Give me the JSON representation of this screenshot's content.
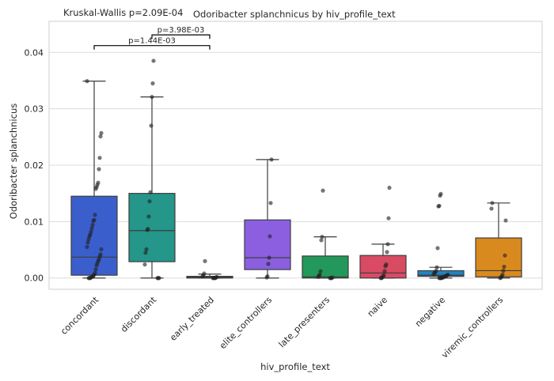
{
  "chart_data": {
    "type": "box",
    "title": "Odoribacter splanchnicus by hiv_profile_text",
    "subtitle": "Kruskal-Wallis p=2.09E-04",
    "xlabel": "hiv_profile_text",
    "ylabel": "Odoribacter splanchnicus",
    "ylim": [
      -0.002,
      0.0455
    ],
    "yticks": [
      0.0,
      0.01,
      0.02,
      0.03,
      0.04
    ],
    "ytick_labels": [
      "0.00",
      "0.01",
      "0.02",
      "0.03",
      "0.04"
    ],
    "grid": "horizontal",
    "categories": [
      "concordant",
      "discordant",
      "early_treated",
      "elite_controllers",
      "late_presenters",
      "naive",
      "negative",
      "viremic_controllers"
    ],
    "colors": [
      "#3a5fcd",
      "#24968a",
      "#8b4a2b",
      "#8b5fe0",
      "#22995a",
      "#d94a63",
      "#1f84c4",
      "#d98a1f"
    ],
    "boxes": [
      {
        "q1": 0.0005,
        "median": 0.0037,
        "q3": 0.0145,
        "whisker_low": 0.0,
        "whisker_high": 0.0349
      },
      {
        "q1": 0.0029,
        "median": 0.0084,
        "q3": 0.015,
        "whisker_low": 0.0,
        "whisker_high": 0.0321
      },
      {
        "q1": 0.0,
        "median": 0.0001,
        "q3": 0.0003,
        "whisker_low": 0.0,
        "whisker_high": 0.0007
      },
      {
        "q1": 0.0015,
        "median": 0.0036,
        "q3": 0.0103,
        "whisker_low": 0.0,
        "whisker_high": 0.021
      },
      {
        "q1": 0.0,
        "median": 0.0002,
        "q3": 0.0039,
        "whisker_low": 0.0,
        "whisker_high": 0.0073
      },
      {
        "q1": 0.0,
        "median": 0.0009,
        "q3": 0.004,
        "whisker_low": 0.0,
        "whisker_high": 0.006
      },
      {
        "q1": 0.0003,
        "median": 0.0005,
        "q3": 0.0013,
        "whisker_low": 0.0,
        "whisker_high": 0.0019
      },
      {
        "q1": 0.0002,
        "median": 0.0013,
        "q3": 0.0071,
        "whisker_low": 0.0,
        "whisker_high": 0.0133
      }
    ],
    "points": [
      [
        0.0349,
        0.0257,
        0.0251,
        0.0213,
        0.0193,
        0.0169,
        0.0165,
        0.0161,
        0.0158,
        0.0112,
        0.0103,
        0.0101,
        0.0094,
        0.0088,
        0.0082,
        0.0077,
        0.0074,
        0.0069,
        0.0063,
        0.0055,
        0.0051,
        0.0042,
        0.0038,
        0.0033,
        0.003,
        0.0026,
        0.0022,
        0.0015,
        0.0009,
        0.0006,
        0.0004,
        0.0003,
        0.0002,
        0.0001,
        0.0,
        0.0,
        0.0
      ],
      [
        0.0385,
        0.0345,
        0.0321,
        0.027,
        0.0152,
        0.0136,
        0.0109,
        0.0087,
        0.0085,
        0.0051,
        0.0045,
        0.0024,
        0.0,
        0.0,
        0.0
      ],
      [
        0.003,
        0.0008,
        0.0005,
        0.0003,
        0.0002,
        0.0001,
        0.0,
        0.0,
        0.0,
        0.0
      ],
      [
        0.021,
        0.0133,
        0.0074,
        0.0036,
        0.0025,
        0.0003,
        0.0001
      ],
      [
        0.0155,
        0.0073,
        0.0067,
        0.0012,
        0.0006,
        0.0004,
        0.0002,
        0.0001,
        0.0,
        0.0,
        0.0
      ],
      [
        0.016,
        0.0106,
        0.006,
        0.0046,
        0.0024,
        0.0021,
        0.0012,
        0.0005,
        0.0003,
        0.0001,
        0.0,
        0.0
      ],
      [
        0.0149,
        0.0146,
        0.0128,
        0.0127,
        0.0053,
        0.0019,
        0.0013,
        0.001,
        0.0009,
        0.0007,
        0.0006,
        0.0005,
        0.0004,
        0.0003,
        0.0003,
        0.0002,
        0.0001,
        0.0001,
        0.0,
        0.0,
        0.0,
        0.0
      ],
      [
        0.0133,
        0.0123,
        0.0102,
        0.004,
        0.002,
        0.0013,
        0.0006,
        0.0003,
        0.0001,
        0.0
      ]
    ],
    "annotations": [
      {
        "text": "p=3.98E-03",
        "from": "discordant",
        "to": "early_treated",
        "y": 0.0431
      },
      {
        "text": "p=1.44E-03",
        "from": "concordant",
        "to": "early_treated",
        "y": 0.0412
      }
    ]
  }
}
